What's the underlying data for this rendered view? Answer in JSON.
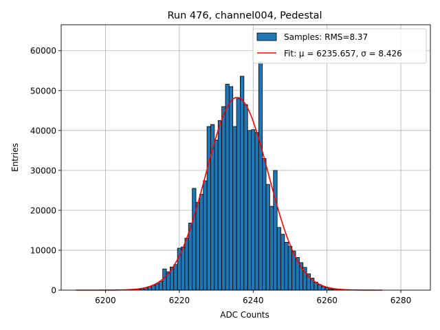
{
  "chart_data": {
    "type": "bar",
    "title": "Run 476, channel004, Pedestal",
    "xlabel": "ADC Counts",
    "ylabel": "Entries",
    "xlim": [
      6188,
      6288
    ],
    "ylim": [
      0,
      66500
    ],
    "xticks": [
      6200,
      6220,
      6240,
      6260,
      6280
    ],
    "yticks": [
      0,
      10000,
      20000,
      30000,
      40000,
      50000,
      60000
    ],
    "grid": true,
    "legend_position": "top-right",
    "bin_width": 1,
    "colors": {
      "bar": "#1f77b4",
      "edge": "#000000",
      "fit": "#ff0000"
    },
    "series": [
      {
        "name": "Samples: RMS=8.37",
        "kind": "histogram",
        "x": [
          6207,
          6208,
          6209,
          6210,
          6211,
          6212,
          6213,
          6214,
          6215,
          6216,
          6217,
          6218,
          6219,
          6220,
          6221,
          6222,
          6223,
          6224,
          6225,
          6226,
          6227,
          6228,
          6229,
          6230,
          6231,
          6232,
          6233,
          6234,
          6235,
          6236,
          6237,
          6238,
          6239,
          6240,
          6241,
          6242,
          6243,
          6244,
          6245,
          6246,
          6247,
          6248,
          6249,
          6250,
          6251,
          6252,
          6253,
          6254,
          6255,
          6256,
          6257,
          6258,
          6259,
          6260,
          6261,
          6262,
          6263,
          6264
        ],
        "values": [
          50,
          120,
          250,
          400,
          600,
          900,
          1200,
          1600,
          2200,
          5300,
          4600,
          5800,
          6400,
          10500,
          10800,
          13000,
          16800,
          25500,
          22000,
          24000,
          27400,
          41000,
          41500,
          37600,
          42500,
          46000,
          51600,
          51000,
          41000,
          48000,
          53600,
          46500,
          40000,
          40200,
          39500,
          57200,
          33000,
          26500,
          21000,
          30000,
          15700,
          14000,
          12000,
          11000,
          9800,
          8200,
          6900,
          5700,
          4100,
          3000,
          2000,
          1400,
          900,
          600,
          300,
          150,
          60,
          20
        ]
      },
      {
        "name": "Fit: μ = 6235.657, σ = 8.426",
        "kind": "gaussian_fit",
        "mu": 6235.657,
        "sigma": 8.426,
        "amplitude": 48300,
        "x_range": [
          6192,
          6275
        ]
      }
    ]
  }
}
